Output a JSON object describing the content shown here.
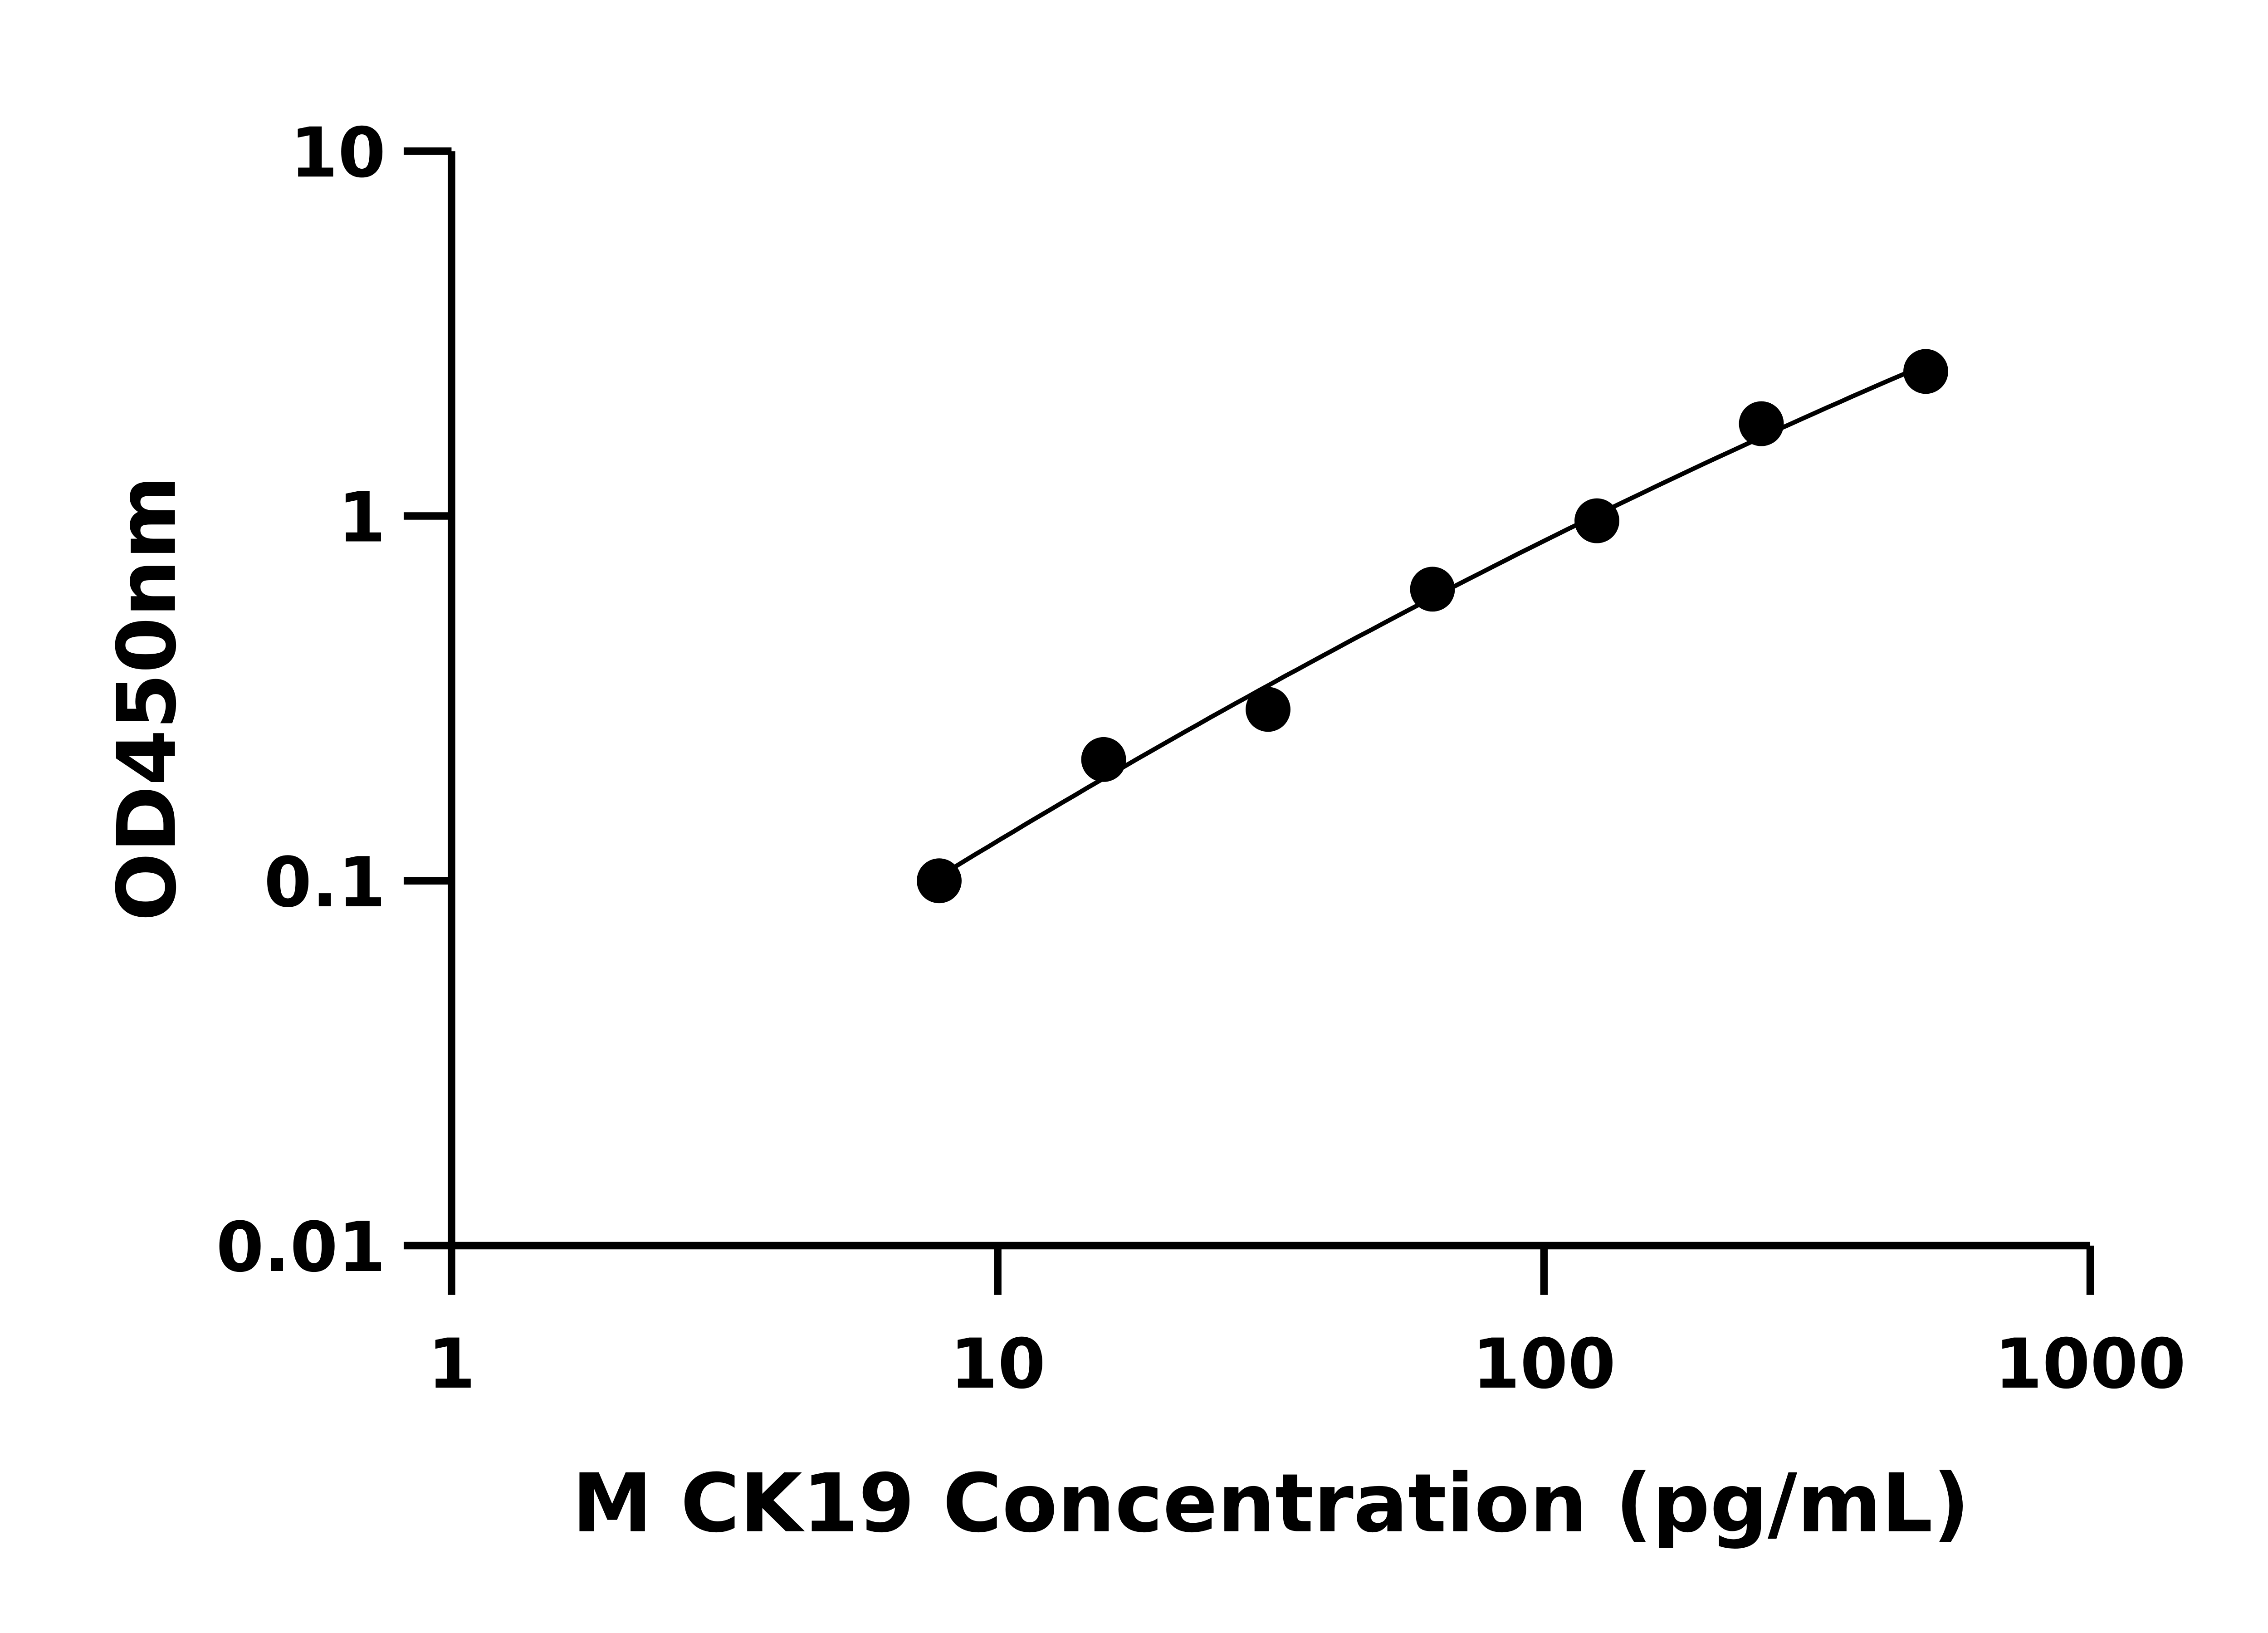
{
  "chart_data": {
    "type": "scatter",
    "title": "",
    "xlabel": "M CK19 Concentration (pg/mL)",
    "ylabel": "OD450nm",
    "x_scale": "log",
    "y_scale": "log",
    "xlim": [
      1,
      1000
    ],
    "ylim": [
      0.01,
      10
    ],
    "x_ticks": [
      1,
      10,
      100,
      1000
    ],
    "x_tick_labels": [
      "1",
      "10",
      "100",
      "1000"
    ],
    "y_ticks": [
      0.01,
      0.1,
      1,
      10
    ],
    "y_tick_labels": [
      "0.01",
      "0.1",
      "1",
      "10"
    ],
    "grid": false,
    "legend": "none",
    "marker_color": "#000000",
    "line_color": "#000000",
    "fit_line": true,
    "series": [
      {
        "x": [
          7.8125,
          15.625,
          31.25,
          62.5,
          125,
          250,
          500
        ],
        "y": [
          0.1,
          0.215,
          0.295,
          0.63,
          0.97,
          1.79,
          2.49
        ]
      }
    ]
  }
}
